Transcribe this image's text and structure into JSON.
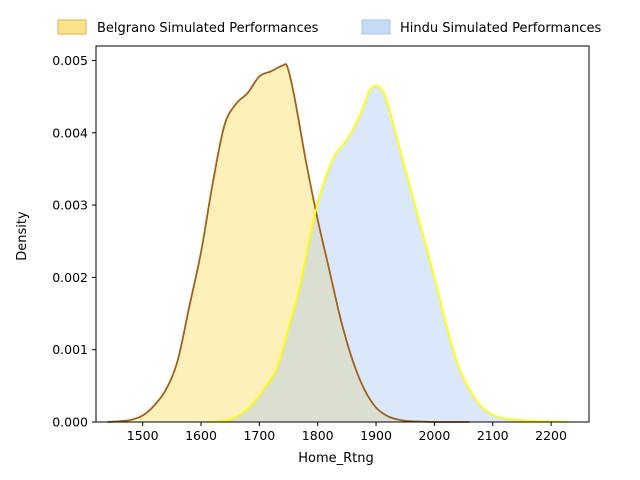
{
  "chart_data": {
    "type": "area",
    "title": "",
    "xlabel": "Home_Rtng",
    "ylabel": "Density",
    "xlim": [
      1420,
      2265
    ],
    "ylim": [
      0,
      0.0052
    ],
    "xticks": [
      1500,
      1600,
      1700,
      1800,
      1900,
      2000,
      2100,
      2200
    ],
    "yticks": [
      0.0,
      0.001,
      0.002,
      0.003,
      0.004,
      0.005
    ],
    "ytick_labels": [
      "0.000",
      "0.001",
      "0.002",
      "0.003",
      "0.004",
      "0.005"
    ],
    "grid": false,
    "legend_position": "top, above plot",
    "series": [
      {
        "name": "Belgrano Simulated Performances",
        "fill": "#fdf0b8",
        "legend_fill": "#fde48a",
        "stroke": "#a0621a",
        "x": [
          1440,
          1460,
          1480,
          1500,
          1520,
          1540,
          1560,
          1580,
          1600,
          1620,
          1640,
          1660,
          1680,
          1700,
          1720,
          1740,
          1748,
          1760,
          1780,
          1800,
          1820,
          1840,
          1860,
          1880,
          1900,
          1920,
          1940,
          1960,
          1980,
          2000,
          2020,
          2040,
          2060
        ],
        "y": [
          0.0,
          1e-05,
          3e-05,
          9e-05,
          0.00023,
          0.00045,
          0.00085,
          0.0016,
          0.00235,
          0.0033,
          0.0041,
          0.0044,
          0.00455,
          0.00478,
          0.00485,
          0.00493,
          0.00491,
          0.0045,
          0.0036,
          0.0028,
          0.0021,
          0.0014,
          0.00085,
          0.00045,
          0.0002,
          8e-05,
          3e-05,
          1e-05,
          5e-06,
          0.0,
          0.0,
          0.0,
          0.0
        ]
      },
      {
        "name": "Hindu Simulated Performances",
        "fill": "#dce9fb",
        "legend_fill": "#c5dbf5",
        "stroke": "#ffff00",
        "x": [
          1610,
          1630,
          1650,
          1670,
          1690,
          1710,
          1730,
          1750,
          1770,
          1790,
          1810,
          1830,
          1850,
          1870,
          1880,
          1890,
          1900,
          1910,
          1920,
          1940,
          1960,
          1980,
          2000,
          2020,
          2040,
          2060,
          2080,
          2100,
          2120,
          2140,
          2160,
          2180,
          2200,
          2230
        ],
        "y": [
          0.0,
          1e-05,
          4e-05,
          0.00012,
          0.00027,
          0.00048,
          0.00075,
          0.0013,
          0.0019,
          0.0027,
          0.0033,
          0.0037,
          0.0039,
          0.0042,
          0.0044,
          0.0046,
          0.00465,
          0.0046,
          0.0044,
          0.0038,
          0.0032,
          0.0026,
          0.002,
          0.00135,
          0.0008,
          0.00045,
          0.00022,
          0.0001,
          5e-05,
          3e-05,
          2e-05,
          1e-05,
          1e-05,
          0.0
        ]
      }
    ]
  }
}
